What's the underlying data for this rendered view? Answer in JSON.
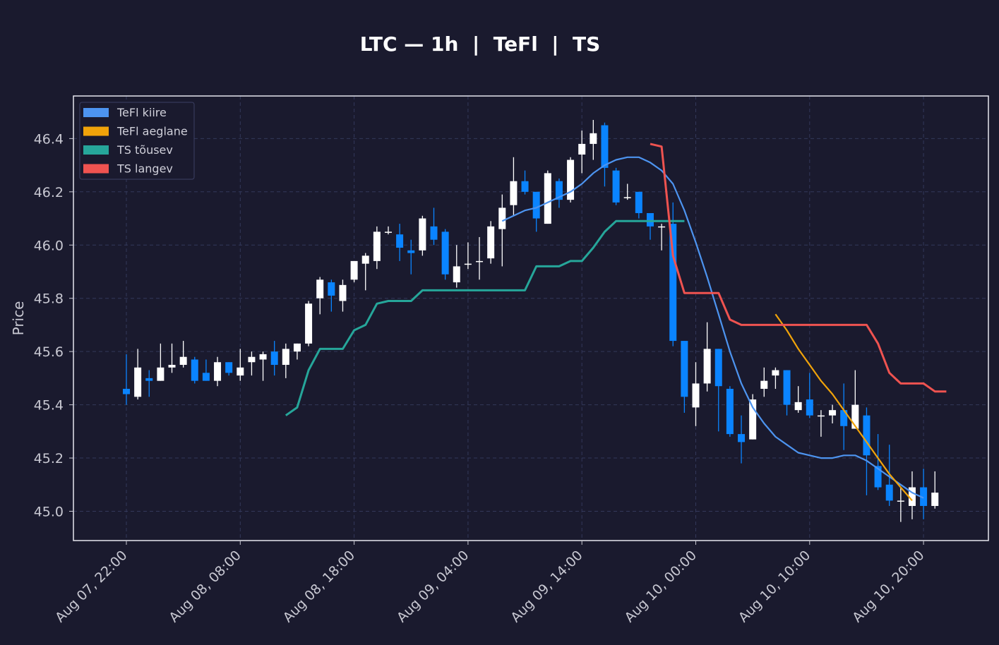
{
  "chart_data": {
    "type": "candlestick",
    "title": "LTC — 1h  |  TeFl  |  TS",
    "xlabel": "",
    "ylabel": "Price",
    "ylim": [
      44.89,
      46.56
    ],
    "y_ticks": [
      45.0,
      45.2,
      45.4,
      45.6,
      45.8,
      46.0,
      46.2,
      46.4
    ],
    "x_ticks": [
      {
        "label": "Aug 07, 22:00",
        "index": 0
      },
      {
        "label": "Aug 08, 08:00",
        "index": 10
      },
      {
        "label": "Aug 08, 18:00",
        "index": 20
      },
      {
        "label": "Aug 09, 04:00",
        "index": 30
      },
      {
        "label": "Aug 09, 14:00",
        "index": 40
      },
      {
        "label": "Aug 10, 00:00",
        "index": 50
      },
      {
        "label": "Aug 10, 10:00",
        "index": 60
      },
      {
        "label": "Aug 10, 20:00",
        "index": 70
      }
    ],
    "grid": true,
    "legend_position": "top-left",
    "colors": {
      "background": "#1a1a2e",
      "up_candle": "#ffffff",
      "down_candle": "#0a84ff",
      "tefl_fast": "#4d94f0",
      "tefl_slow": "#f0a30a",
      "ts_up": "#26a69a",
      "ts_down": "#ef5350",
      "grid": "#33385a",
      "frame": "#ffffff"
    },
    "legend": [
      {
        "label": "TeFl kiire",
        "color": "#4d94f0"
      },
      {
        "label": "TeFl aeglane",
        "color": "#f0a30a"
      },
      {
        "label": "TS tõusev",
        "color": "#26a69a"
      },
      {
        "label": "TS langev",
        "color": "#ef5350"
      }
    ],
    "candles": [
      [
        45.46,
        45.59,
        45.4,
        45.44
      ],
      [
        45.43,
        45.61,
        45.42,
        45.54
      ],
      [
        45.5,
        45.53,
        45.43,
        45.49
      ],
      [
        45.49,
        45.63,
        45.49,
        45.54
      ],
      [
        45.54,
        45.63,
        45.52,
        45.55
      ],
      [
        45.55,
        45.64,
        45.54,
        45.58
      ],
      [
        45.57,
        45.58,
        45.48,
        45.49
      ],
      [
        45.52,
        45.57,
        45.49,
        45.49
      ],
      [
        45.49,
        45.58,
        45.47,
        45.56
      ],
      [
        45.56,
        45.56,
        45.51,
        45.52
      ],
      [
        45.51,
        45.61,
        45.49,
        45.54
      ],
      [
        45.56,
        45.6,
        45.51,
        45.58
      ],
      [
        45.57,
        45.6,
        45.49,
        45.59
      ],
      [
        45.6,
        45.64,
        45.51,
        45.55
      ],
      [
        45.55,
        45.63,
        45.5,
        45.61
      ],
      [
        45.6,
        45.63,
        45.57,
        45.63
      ],
      [
        45.63,
        45.79,
        45.62,
        45.78
      ],
      [
        45.8,
        45.88,
        45.74,
        45.87
      ],
      [
        45.86,
        45.87,
        45.75,
        45.81
      ],
      [
        45.79,
        45.87,
        45.75,
        45.85
      ],
      [
        45.87,
        45.94,
        45.86,
        45.94
      ],
      [
        45.93,
        45.97,
        45.83,
        45.96
      ],
      [
        45.94,
        46.07,
        45.91,
        46.05
      ],
      [
        46.05,
        46.07,
        46.04,
        46.05
      ],
      [
        46.04,
        46.08,
        45.94,
        45.99
      ],
      [
        45.98,
        46.02,
        45.89,
        45.97
      ],
      [
        45.98,
        46.11,
        45.96,
        46.1
      ],
      [
        46.07,
        46.14,
        46.0,
        46.02
      ],
      [
        46.05,
        46.06,
        45.87,
        45.89
      ],
      [
        45.86,
        46.0,
        45.84,
        45.92
      ],
      [
        45.93,
        46.01,
        45.91,
        45.93
      ],
      [
        45.94,
        46.03,
        45.87,
        45.94
      ],
      [
        45.95,
        46.09,
        45.93,
        46.07
      ],
      [
        46.06,
        46.19,
        45.92,
        46.14
      ],
      [
        46.15,
        46.33,
        46.11,
        46.24
      ],
      [
        46.24,
        46.28,
        46.19,
        46.2
      ],
      [
        46.2,
        46.2,
        46.05,
        46.1
      ],
      [
        46.08,
        46.28,
        46.08,
        46.27
      ],
      [
        46.24,
        46.25,
        46.14,
        46.17
      ],
      [
        46.17,
        46.33,
        46.16,
        46.32
      ],
      [
        46.34,
        46.43,
        46.27,
        46.38
      ],
      [
        46.38,
        46.47,
        46.32,
        46.42
      ],
      [
        46.45,
        46.46,
        46.22,
        46.29
      ],
      [
        46.28,
        46.29,
        46.15,
        46.16
      ],
      [
        46.18,
        46.23,
        46.17,
        46.18
      ],
      [
        46.2,
        46.2,
        46.1,
        46.12
      ],
      [
        46.12,
        46.12,
        46.02,
        46.07
      ],
      [
        46.07,
        46.08,
        45.98,
        46.07
      ],
      [
        46.08,
        46.16,
        45.62,
        45.64
      ],
      [
        45.64,
        45.64,
        45.37,
        45.43
      ],
      [
        45.39,
        45.56,
        45.32,
        45.48
      ],
      [
        45.48,
        45.71,
        45.45,
        45.61
      ],
      [
        45.61,
        45.61,
        45.3,
        45.47
      ],
      [
        45.46,
        45.47,
        45.28,
        45.29
      ],
      [
        45.29,
        45.36,
        45.18,
        45.26
      ],
      [
        45.27,
        45.44,
        45.27,
        45.42
      ],
      [
        45.46,
        45.54,
        45.43,
        45.49
      ],
      [
        45.51,
        45.54,
        45.46,
        45.53
      ],
      [
        45.53,
        45.53,
        45.36,
        45.4
      ],
      [
        45.38,
        45.47,
        45.37,
        45.41
      ],
      [
        45.42,
        45.52,
        45.35,
        45.36
      ],
      [
        45.36,
        45.38,
        45.28,
        45.36
      ],
      [
        45.36,
        45.4,
        45.33,
        45.38
      ],
      [
        45.38,
        45.48,
        45.23,
        45.32
      ],
      [
        45.31,
        45.53,
        45.31,
        45.4
      ],
      [
        45.36,
        45.39,
        45.06,
        45.21
      ],
      [
        45.17,
        45.29,
        45.08,
        45.09
      ],
      [
        45.1,
        45.25,
        45.02,
        45.04
      ],
      [
        45.04,
        45.09,
        44.96,
        45.04
      ],
      [
        45.02,
        45.15,
        44.97,
        45.09
      ],
      [
        45.09,
        45.16,
        44.97,
        45.02
      ],
      [
        45.02,
        45.15,
        45.01,
        45.07
      ]
    ],
    "series": [
      {
        "name": "TeFl kiire",
        "start_index": 33,
        "values": [
          46.09,
          46.11,
          46.13,
          46.14,
          46.16,
          46.18,
          46.2,
          46.23,
          46.27,
          46.3,
          46.32,
          46.33,
          46.33,
          46.31,
          46.28,
          46.23,
          46.13,
          46.01,
          45.88,
          45.74,
          45.6,
          45.48,
          45.39,
          45.33,
          45.28,
          45.25,
          45.22,
          45.21,
          45.2,
          45.2,
          45.21,
          45.21,
          45.19,
          45.16,
          45.13,
          45.1,
          45.07,
          45.05
        ]
      },
      {
        "name": "TeFl aeglane",
        "start_index": 57,
        "values": [
          45.74,
          45.68,
          45.61,
          45.55,
          45.49,
          45.44,
          45.38,
          45.32,
          45.26,
          45.2,
          45.14,
          45.09,
          45.04
        ]
      },
      {
        "name": "TS tõusev",
        "start_index": 14,
        "values": [
          45.36,
          45.39,
          45.53,
          45.61,
          45.61,
          45.61,
          45.68,
          45.7,
          45.78,
          45.79,
          45.79,
          45.79,
          45.83,
          45.83,
          45.83,
          45.83,
          45.83,
          45.83,
          45.83,
          45.83,
          45.83,
          45.83,
          45.92,
          45.92,
          45.92,
          45.94,
          45.94,
          45.99,
          46.05,
          46.09,
          46.09,
          46.09,
          46.09,
          46.09,
          46.09,
          46.09
        ]
      },
      {
        "name": "TS langev",
        "start_index": 46,
        "values": [
          46.38,
          46.37,
          45.96,
          45.82,
          45.82,
          45.82,
          45.82,
          45.72,
          45.7,
          45.7,
          45.7,
          45.7,
          45.7,
          45.7,
          45.7,
          45.7,
          45.7,
          45.7,
          45.7,
          45.7,
          45.63,
          45.52,
          45.48,
          45.48,
          45.48,
          45.45,
          45.45
        ]
      }
    ]
  }
}
